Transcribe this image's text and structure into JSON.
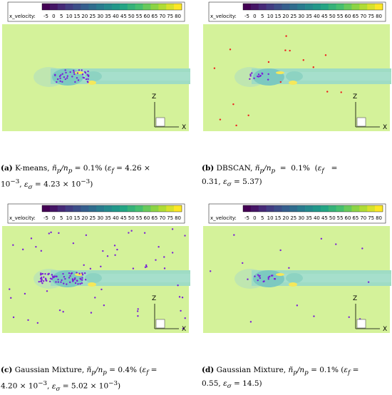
{
  "colorbar": {
    "label": "x_velocity:",
    "ticks": [
      "-5",
      "0",
      "5",
      "10",
      "15",
      "20",
      "25",
      "30",
      "35",
      "40",
      "45",
      "50",
      "55",
      "60",
      "65",
      "70",
      "75",
      "80"
    ],
    "stops": [
      "#440154",
      "#46327e",
      "#365c8d",
      "#277f8e",
      "#1fa187",
      "#4ac16d",
      "#a0da39",
      "#fde725"
    ]
  },
  "axes": {
    "z": "Z",
    "x": "X"
  },
  "colors": {
    "background_field": "#d4f29a",
    "wake": "#9fdcc4",
    "wake_core": "#7cc9c0",
    "points": "#7a1fd6",
    "points_red": "#ee1c1c",
    "warm_spot": "#f5e85a"
  },
  "panels": [
    {
      "id": "a",
      "label": "(a)",
      "method": "K-means,",
      "ratio_text": "ñp/np = 0.1% (εf = 4.26 × 10−3, εσ = 4.23 × 10−3)",
      "caption_line1": "K-means, ",
      "ratio_pct": "0.1%",
      "ef": "4.26 ×",
      "ef_exp_line2": "10",
      "ef_exp": "−3",
      "es": "4.23 × 10",
      "es_exp": "−3",
      "points_scatter": "focused"
    },
    {
      "id": "b",
      "label": "(b)",
      "method": "DBSCAN,",
      "ratio_pct": "0.1%",
      "ef": "0.31,",
      "es": "5.37)",
      "points_scatter": "sparse"
    },
    {
      "id": "c",
      "label": "(c)",
      "method": "Gaussian Mixture,",
      "ratio_pct": "0.4%",
      "ef": "4.20 × 10",
      "ef_exp": "−3",
      "es": "5.02 × 10",
      "es_exp": "−3",
      "points_scatter": "dense"
    },
    {
      "id": "d",
      "label": "(d)",
      "method": "Gaussian Mixture,",
      "ratio_pct": "0.1%",
      "ef": "0.55,",
      "es": "14.5)",
      "points_scatter": "sparse"
    }
  ]
}
